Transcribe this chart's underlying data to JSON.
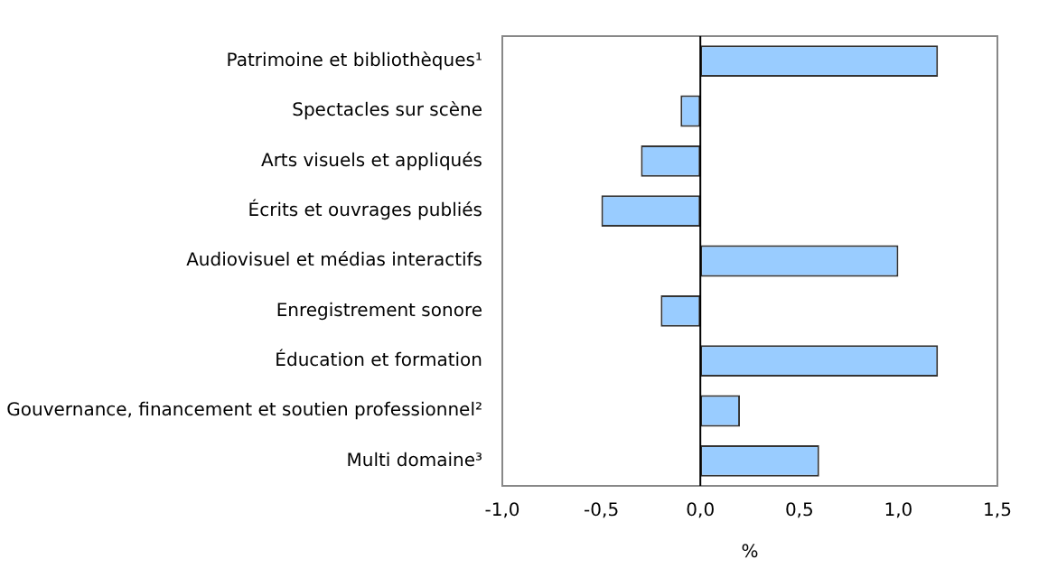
{
  "chart_data": {
    "type": "bar",
    "orientation": "horizontal",
    "xlabel": "%",
    "categories": [
      "Patrimoine et bibliothèques¹",
      "Spectacles sur scène",
      "Arts visuels et appliqués",
      "Écrits et ouvrages publiés",
      "Audiovisuel et médias interactifs",
      "Enregistrement sonore",
      "Éducation et formation",
      "Gouvernance, financement et soutien professionnel²",
      "Multi domaine³"
    ],
    "values": [
      1.2,
      -0.1,
      -0.3,
      -0.5,
      1.0,
      -0.2,
      1.2,
      0.2,
      0.6
    ],
    "color": "#99ccff",
    "xlim": [
      -1,
      1.5
    ],
    "xticks": [
      {
        "value": -1,
        "label": "-1,0"
      },
      {
        "value": -0.5,
        "label": "-0,5"
      },
      {
        "value": 0,
        "label": "0,0"
      },
      {
        "value": 0.5,
        "label": "0,5"
      },
      {
        "value": 1,
        "label": "1,0"
      },
      {
        "value": 1.5,
        "label": "1,5"
      }
    ],
    "ref_lines": [
      {
        "axis": "x",
        "value": 0,
        "color": "#000000"
      }
    ],
    "grid": false,
    "legend": false
  }
}
